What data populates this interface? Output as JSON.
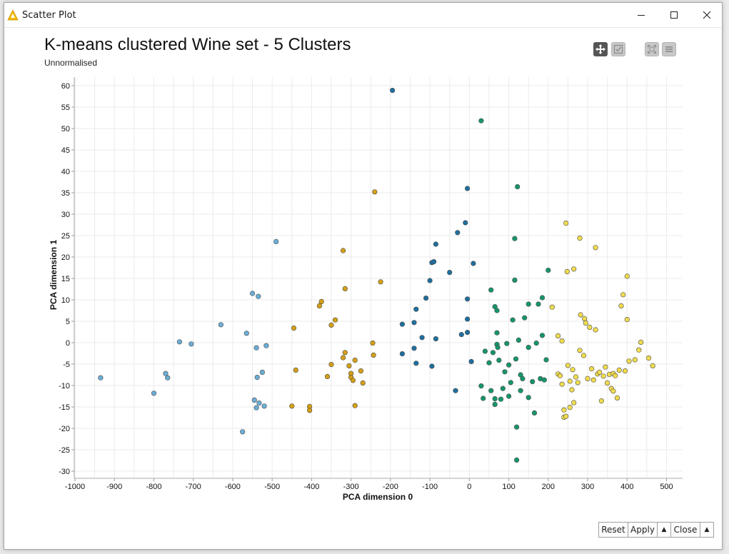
{
  "window": {
    "title": "Scatter Plot"
  },
  "toolbar": {
    "pan_icon": "move-arrows-icon",
    "select_icon": "checkbox-select-icon",
    "fullscreen_icon": "fullscreen-icon",
    "menu_icon": "menu-icon"
  },
  "footer": {
    "reset": "Reset",
    "apply": "Apply",
    "apply_menu": "▲",
    "close": "Close",
    "close_menu": "▲"
  },
  "chart_data": {
    "type": "scatter",
    "title": "K-means clustered Wine set - 5 Clusters",
    "subtitle": "Unnormalised",
    "xlabel": "PCA dimension 0",
    "ylabel": "PCA dimension 1",
    "xlim": [
      -1000,
      540
    ],
    "ylim": [
      -32,
      63
    ],
    "xticks": [
      -1000,
      -900,
      -800,
      -700,
      -600,
      -500,
      -400,
      -300,
      -200,
      -100,
      0,
      100,
      200,
      300,
      400,
      500
    ],
    "yticks": [
      60,
      55,
      50,
      45,
      40,
      35,
      30,
      25,
      20,
      15,
      10,
      5,
      0,
      -5,
      -10,
      -15,
      -20,
      -25,
      -30
    ],
    "grid": true,
    "series": [
      {
        "color": "#6baed6",
        "points": [
          [
            -935,
            -8.2
          ],
          [
            -800,
            -11.8
          ],
          [
            -770,
            -7.2
          ],
          [
            -765,
            -8.2
          ],
          [
            -735,
            0.2
          ],
          [
            -705,
            -0.3
          ],
          [
            -630,
            4.2
          ],
          [
            -575,
            -20.8
          ],
          [
            -565,
            2.2
          ],
          [
            -550,
            11.5
          ],
          [
            -545,
            -13.4
          ],
          [
            -540,
            -1.2
          ],
          [
            -540,
            -15.2
          ],
          [
            -538,
            -8.1
          ],
          [
            -535,
            10.8
          ],
          [
            -533,
            -14.1
          ],
          [
            -525,
            -6.9
          ],
          [
            -520,
            -14.8
          ],
          [
            -515,
            -0.7
          ],
          [
            -490,
            23.6
          ]
        ]
      },
      {
        "color": "#d4a017",
        "points": [
          [
            -450,
            -14.8
          ],
          [
            -445,
            3.4
          ],
          [
            -440,
            -6.4
          ],
          [
            -405,
            -14.9
          ],
          [
            -405,
            -15.8
          ],
          [
            -380,
            8.6
          ],
          [
            -375,
            9.6
          ],
          [
            -360,
            -7.9
          ],
          [
            -350,
            -5.1
          ],
          [
            -350,
            4.1
          ],
          [
            -340,
            5.3
          ],
          [
            -320,
            21.5
          ],
          [
            -320,
            -3.5
          ],
          [
            -315,
            12.6
          ],
          [
            -315,
            -2.3
          ],
          [
            -305,
            -5.4
          ],
          [
            -300,
            -7.2
          ],
          [
            -300,
            -8.1
          ],
          [
            -295,
            -8.8
          ],
          [
            -290,
            -4.1
          ],
          [
            -290,
            -14.7
          ],
          [
            -275,
            -6.6
          ],
          [
            -270,
            -9.4
          ],
          [
            -245,
            -0.1
          ],
          [
            -243,
            -2.9
          ],
          [
            -240,
            35.2
          ],
          [
            -225,
            14.2
          ]
        ]
      },
      {
        "color": "#1f6f9e",
        "points": [
          [
            -195,
            58.9
          ],
          [
            -170,
            4.3
          ],
          [
            -170,
            -2.6
          ],
          [
            -140,
            4.7
          ],
          [
            -140,
            -1.3
          ],
          [
            -135,
            7.8
          ],
          [
            -135,
            -4.8
          ],
          [
            -120,
            1.2
          ],
          [
            -110,
            10.4
          ],
          [
            -100,
            14.5
          ],
          [
            -95,
            18.7
          ],
          [
            -95,
            -5.5
          ],
          [
            -90,
            18.9
          ],
          [
            -85,
            23
          ],
          [
            -85,
            0.9
          ],
          [
            -50,
            16.4
          ],
          [
            -35,
            -11.2
          ],
          [
            -30,
            25.7
          ],
          [
            -20,
            1.9
          ],
          [
            -10,
            28
          ],
          [
            -5,
            36
          ],
          [
            -5,
            10.2
          ],
          [
            -5,
            5.5
          ],
          [
            -5,
            2.4
          ],
          [
            5,
            -4.4
          ],
          [
            10,
            18.5
          ]
        ]
      },
      {
        "color": "#15966a",
        "points": [
          [
            30,
            51.8
          ],
          [
            30,
            -10.1
          ],
          [
            35,
            -13
          ],
          [
            40,
            -2
          ],
          [
            50,
            -4.7
          ],
          [
            55,
            12.3
          ],
          [
            55,
            -11.2
          ],
          [
            60,
            -2.3
          ],
          [
            65,
            -13.1
          ],
          [
            65,
            8.4
          ],
          [
            65,
            -14.4
          ],
          [
            70,
            -0.4
          ],
          [
            70,
            7.5
          ],
          [
            70,
            2.3
          ],
          [
            72,
            -1.1
          ],
          [
            75,
            -4.1
          ],
          [
            80,
            -13.2
          ],
          [
            85,
            -10.7
          ],
          [
            90,
            -6.8
          ],
          [
            95,
            -0.2
          ],
          [
            100,
            -12.5
          ],
          [
            100,
            -5.2
          ],
          [
            105,
            -9.3
          ],
          [
            110,
            5.3
          ],
          [
            115,
            14.6
          ],
          [
            115,
            24.3
          ],
          [
            118,
            -3.8
          ],
          [
            120,
            -19.7
          ],
          [
            120,
            -27.4
          ],
          [
            122,
            36.4
          ],
          [
            125,
            0.6
          ],
          [
            130,
            -11.2
          ],
          [
            130,
            -7.5
          ],
          [
            135,
            -8.4
          ],
          [
            140,
            5.8
          ],
          [
            150,
            9
          ],
          [
            150,
            -1.1
          ],
          [
            150,
            -12.8
          ],
          [
            160,
            -9.1
          ],
          [
            165,
            -16.4
          ],
          [
            170,
            -0.1
          ],
          [
            175,
            9
          ],
          [
            180,
            -8.4
          ],
          [
            185,
            1.7
          ],
          [
            185,
            10.5
          ],
          [
            190,
            -8.7
          ],
          [
            195,
            -4
          ],
          [
            200,
            16.9
          ]
        ]
      },
      {
        "color": "#f0dc4e",
        "points": [
          [
            210,
            8.3
          ],
          [
            225,
            1.6
          ],
          [
            225,
            -7.3
          ],
          [
            230,
            -7.7
          ],
          [
            235,
            0.4
          ],
          [
            235,
            -9.7
          ],
          [
            240,
            -15.7
          ],
          [
            240,
            -17.4
          ],
          [
            245,
            -17.2
          ],
          [
            245,
            27.9
          ],
          [
            248,
            16.6
          ],
          [
            250,
            -5.3
          ],
          [
            255,
            -15.1
          ],
          [
            255,
            -9
          ],
          [
            260,
            -11
          ],
          [
            262,
            -6.3
          ],
          [
            265,
            17.2
          ],
          [
            265,
            -14
          ],
          [
            270,
            -8
          ],
          [
            275,
            -9.3
          ],
          [
            280,
            24.4
          ],
          [
            280,
            -1.8
          ],
          [
            282,
            6.5
          ],
          [
            290,
            -3
          ],
          [
            292,
            5.6
          ],
          [
            295,
            4.6
          ],
          [
            300,
            -8.4
          ],
          [
            305,
            3.6
          ],
          [
            310,
            -6.1
          ],
          [
            315,
            -8.7
          ],
          [
            320,
            22.2
          ],
          [
            320,
            3
          ],
          [
            325,
            -7.3
          ],
          [
            330,
            -6.9
          ],
          [
            335,
            -13.6
          ],
          [
            340,
            -7.8
          ],
          [
            345,
            -5.7
          ],
          [
            350,
            -9.4
          ],
          [
            355,
            -7.4
          ],
          [
            360,
            -10.7
          ],
          [
            365,
            -11.3
          ],
          [
            365,
            -7.2
          ],
          [
            370,
            -7.7
          ],
          [
            375,
            -12.9
          ],
          [
            380,
            -6.4
          ],
          [
            385,
            8.6
          ],
          [
            390,
            11.2
          ],
          [
            395,
            -6.6
          ],
          [
            400,
            15.5
          ],
          [
            400,
            5.4
          ],
          [
            405,
            -4.3
          ],
          [
            420,
            -4
          ],
          [
            430,
            -1.7
          ],
          [
            435,
            0.1
          ],
          [
            455,
            -3.6
          ],
          [
            465,
            -5.4
          ]
        ]
      }
    ]
  }
}
